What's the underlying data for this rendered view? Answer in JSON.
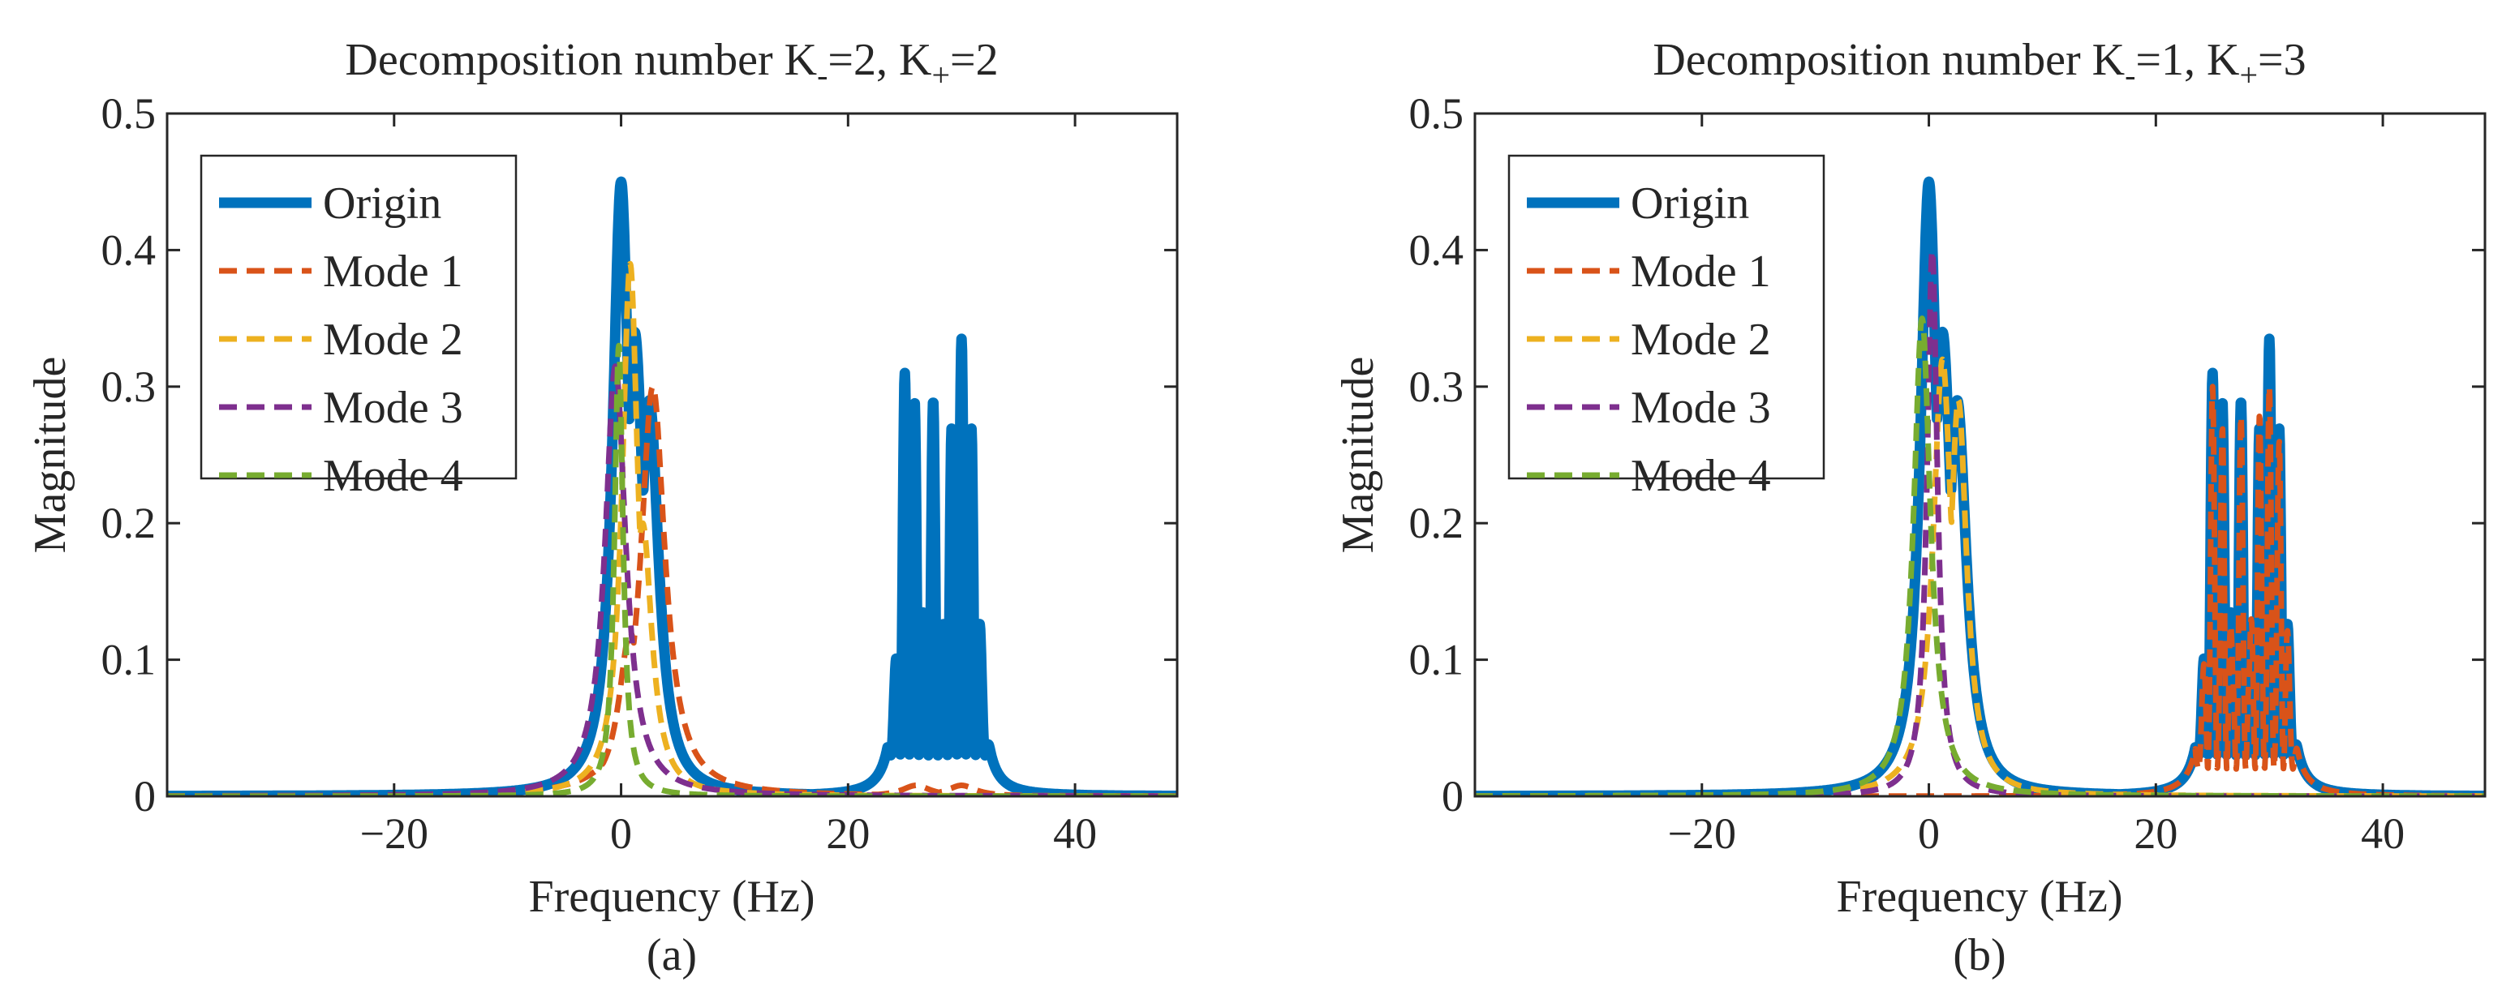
{
  "colors": {
    "origin": "#0072BD",
    "mode1": "#D95319",
    "mode2": "#EDB120",
    "mode3": "#7E2F8E",
    "mode4": "#77AC30",
    "axis": "#262626",
    "background": "#ffffff"
  },
  "chart_data": [
    {
      "type": "line",
      "panel_label": "(a)",
      "title": "Decomposition number K",
      "title_parts": {
        "pre": "Decomposition number K",
        "sub1": "-",
        "mid": "=2, K",
        "sub2": "+",
        "post": "=2"
      },
      "xlabel": "Frequency (Hz)",
      "ylabel": "Magnitude",
      "xlim": [
        -40,
        49
      ],
      "ylim": [
        0,
        0.5
      ],
      "xticks": [
        -20,
        0,
        20,
        40
      ],
      "xtick_labels": [
        "−20",
        "0",
        "20",
        "40"
      ],
      "yticks": [
        0,
        0.1,
        0.2,
        0.3,
        0.4,
        0.5
      ],
      "ytick_labels": [
        "0",
        "0.1",
        "0.2",
        "0.3",
        "0.4",
        "0.5"
      ],
      "grid": false,
      "legend_position": "top-left",
      "legend": [
        "Origin",
        "Mode 1",
        "Mode 2",
        "Mode 3",
        "Mode 4"
      ],
      "series": [
        {
          "name": "Origin",
          "style": "solid",
          "peaks": [
            [
              0,
              0.45,
              0.9
            ],
            [
              1.2,
              0.34,
              1.0
            ],
            [
              2.5,
              0.29,
              1.0
            ],
            [
              25,
              0.31,
              0.55
            ],
            [
              26,
              0.31,
              0.55
            ],
            [
              27.5,
              0.29,
              0.55
            ],
            [
              29,
              0.29,
              0.55
            ],
            [
              30,
              0.335,
              0.55
            ],
            [
              31,
              0.29,
              0.55
            ]
          ],
          "oscillate": [
            23.5,
            32.5
          ],
          "ripple_low": 0.03
        },
        {
          "name": "Mode 1",
          "style": "dashed",
          "peaks": [
            [
              2.8,
              0.3,
              1.3
            ],
            [
              0.8,
              0.12,
              1.2
            ],
            [
              26,
              0.008,
              1.5
            ],
            [
              30,
              0.008,
              1.5
            ]
          ]
        },
        {
          "name": "Mode 2",
          "style": "dashed",
          "peaks": [
            [
              0.8,
              0.39,
              0.85
            ],
            [
              1.9,
              0.2,
              1.0
            ]
          ]
        },
        {
          "name": "Mode 3",
          "style": "dashed",
          "peaks": [
            [
              -0.5,
              0.315,
              1.1
            ]
          ]
        },
        {
          "name": "Mode 4",
          "style": "dashed",
          "peaks": [
            [
              -0.2,
              0.33,
              0.45
            ]
          ]
        }
      ]
    },
    {
      "type": "line",
      "panel_label": "(b)",
      "title": "Decomposition number K",
      "title_parts": {
        "pre": "Decomposition number K",
        "sub1": "-",
        "mid": "=1, K",
        "sub2": "+",
        "post": "=3"
      },
      "xlabel": "Frequency (Hz)",
      "ylabel": "Magnitude",
      "xlim": [
        -40,
        49
      ],
      "ylim": [
        0,
        0.5
      ],
      "xticks": [
        -20,
        0,
        20,
        40
      ],
      "xtick_labels": [
        "−20",
        "0",
        "20",
        "40"
      ],
      "yticks": [
        0,
        0.1,
        0.2,
        0.3,
        0.4,
        0.5
      ],
      "ytick_labels": [
        "0",
        "0.1",
        "0.2",
        "0.3",
        "0.4",
        "0.5"
      ],
      "grid": false,
      "legend_position": "top-left",
      "legend": [
        "Origin",
        "Mode 1",
        "Mode 2",
        "Mode 3",
        "Mode 4"
      ],
      "series": [
        {
          "name": "Origin",
          "style": "solid",
          "peaks": [
            [
              0,
              0.45,
              0.9
            ],
            [
              1.2,
              0.34,
              1.0
            ],
            [
              2.5,
              0.29,
              1.0
            ],
            [
              25,
              0.31,
              0.55
            ],
            [
              26,
              0.31,
              0.55
            ],
            [
              27.5,
              0.29,
              0.55
            ],
            [
              29,
              0.29,
              0.55
            ],
            [
              30,
              0.335,
              0.55
            ],
            [
              31,
              0.29,
              0.55
            ]
          ],
          "oscillate": [
            23.5,
            32.5
          ],
          "ripple_low": 0.03
        },
        {
          "name": "Mode 1",
          "style": "dashed",
          "peaks": [
            [
              25,
              0.3,
              0.55
            ],
            [
              26,
              0.29,
              0.55
            ],
            [
              27.5,
              0.28,
              0.55
            ],
            [
              29,
              0.3,
              0.55
            ],
            [
              30,
              0.3,
              0.55
            ],
            [
              31,
              0.28,
              0.55
            ]
          ],
          "oscillate": [
            23.5,
            32.5
          ],
          "ripple_low": 0.02
        },
        {
          "name": "Mode 2",
          "style": "dashed",
          "peaks": [
            [
              1.2,
              0.32,
              1.0
            ],
            [
              2.6,
              0.29,
              0.9
            ]
          ]
        },
        {
          "name": "Mode 3",
          "style": "dashed",
          "peaks": [
            [
              0.3,
              0.4,
              0.55
            ]
          ]
        },
        {
          "name": "Mode 4",
          "style": "dashed",
          "peaks": [
            [
              -0.6,
              0.35,
              0.9
            ]
          ]
        }
      ]
    }
  ]
}
